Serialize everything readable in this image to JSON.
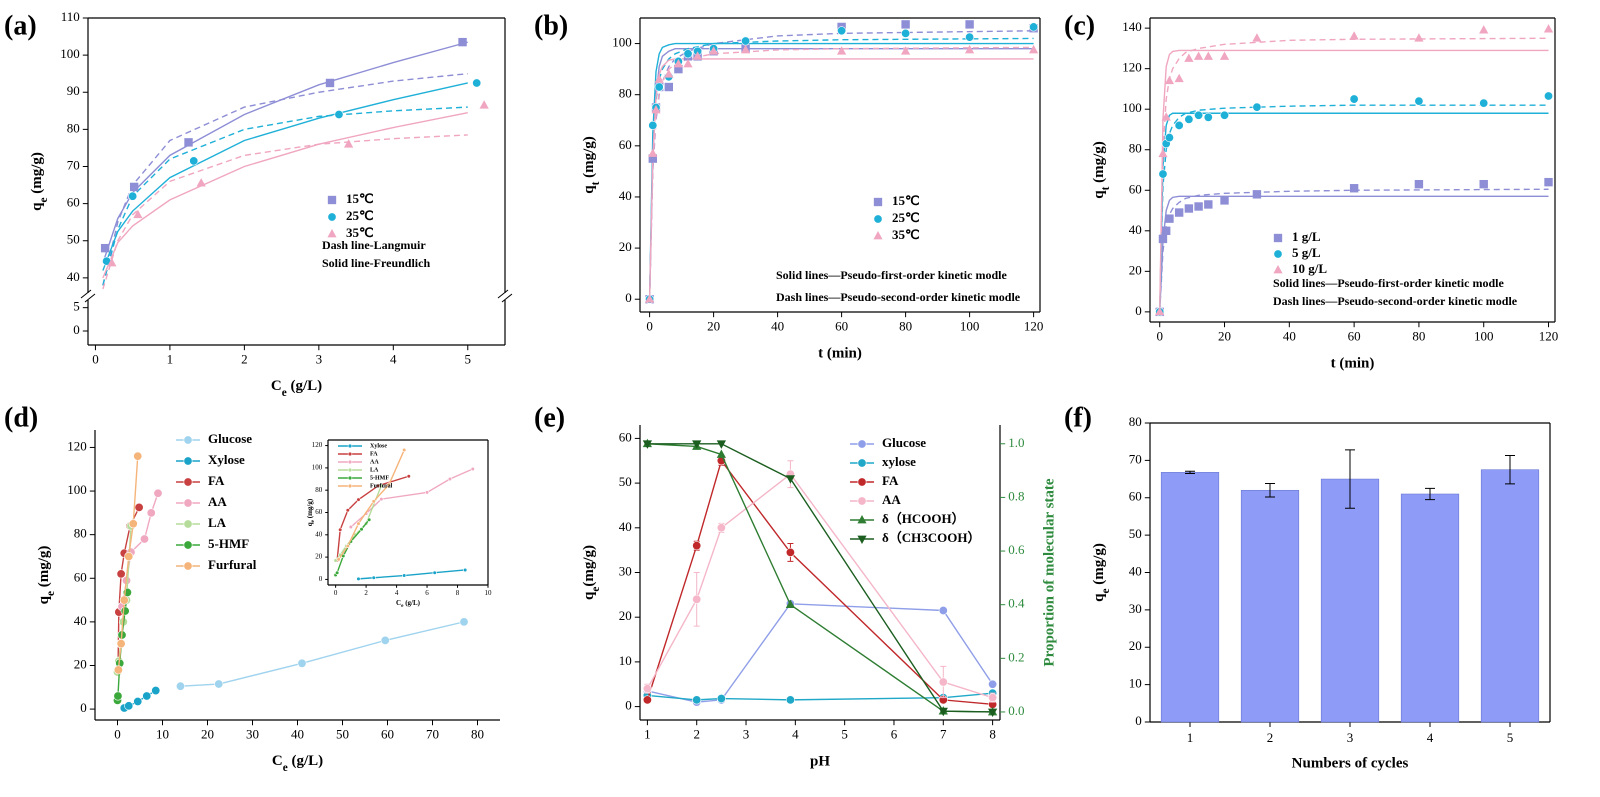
{
  "chart_data": [
    {
      "type": "scatter",
      "panel_label": "(a)",
      "x_label": {
        "text": "C",
        "sub": "e",
        "rest": " (g/L)"
      },
      "y_label": {
        "text": "q",
        "sub": "e",
        "rest": " (mg/g)"
      },
      "xlim": [
        -0.1,
        5.5
      ],
      "xticks": [
        0,
        1,
        2,
        3,
        4,
        5
      ],
      "ylim": [
        37,
        110
      ],
      "yticks": [
        40,
        50,
        60,
        70,
        80,
        90,
        100,
        110
      ],
      "ylim_lower": [
        -3,
        6
      ],
      "yticks_lower": [
        0,
        5
      ],
      "series": [
        {
          "name": "15℃",
          "color": "#8e8ed6",
          "marker": "square",
          "x": [
            0.13,
            0.52,
            1.25,
            3.15,
            4.93
          ],
          "values": [
            48,
            64.5,
            76.5,
            92.5,
            103.5
          ]
        },
        {
          "name": "25℃",
          "color": "#1fb0d8",
          "marker": "circle",
          "x": [
            0.15,
            0.5,
            1.32,
            3.27,
            5.12
          ],
          "values": [
            44.5,
            62,
            71.5,
            84,
            92.5
          ]
        },
        {
          "name": "35℃",
          "color": "#f0a6c0",
          "marker": "triangle",
          "x": [
            0.22,
            0.57,
            1.42,
            3.4,
            5.22
          ],
          "values": [
            44,
            57,
            65.5,
            76,
            86.5
          ]
        }
      ],
      "fit_x": [
        0.1,
        0.3,
        0.5,
        1,
        2,
        3,
        4,
        5
      ],
      "fits": [
        {
          "style": "solid",
          "color": "#8e8ed6",
          "values": [
            44,
            56,
            63,
            73,
            84,
            92,
            98,
            103.5
          ]
        },
        {
          "style": "dashed",
          "color": "#8e8ed6",
          "values": [
            38,
            55,
            65,
            77,
            86,
            90,
            93,
            95
          ]
        },
        {
          "style": "solid",
          "color": "#1fb0d8",
          "values": [
            42,
            52.5,
            58,
            67,
            77,
            83,
            88,
            92.5
          ]
        },
        {
          "style": "dashed",
          "color": "#1fb0d8",
          "values": [
            38,
            53,
            62,
            72,
            80,
            83.5,
            85,
            86
          ]
        },
        {
          "style": "solid",
          "color": "#f0a6c0",
          "values": [
            40,
            49.5,
            54,
            61,
            70,
            76,
            80.5,
            84.5
          ]
        },
        {
          "style": "dashed",
          "color": "#f0a6c0",
          "values": [
            37,
            50,
            57,
            66,
            73,
            76,
            77.5,
            78.5
          ]
        }
      ],
      "annotations": [
        "Dash line-Langmuir",
        "Solid line-Freundlich"
      ]
    },
    {
      "type": "scatter",
      "panel_label": "(b)",
      "x_label": "t (min)",
      "y_label": {
        "text": "q",
        "sub": "t",
        "rest": " (mg/g)"
      },
      "xlim": [
        -3,
        122
      ],
      "xticks": [
        0,
        20,
        40,
        60,
        80,
        100,
        120
      ],
      "ylim": [
        -5,
        110
      ],
      "yticks": [
        0,
        20,
        40,
        60,
        80,
        100
      ],
      "x": [
        0,
        1,
        2,
        3,
        6,
        9,
        12,
        15,
        20,
        30,
        60,
        80,
        100,
        120
      ],
      "series": [
        {
          "name": "15℃",
          "color": "#8e8ed6",
          "marker": "square",
          "values": [
            0,
            55,
            75,
            83,
            83,
            90,
            95,
            95,
            97,
            98,
            106.5,
            107.5,
            107.5,
            106
          ]
        },
        {
          "name": "25℃",
          "color": "#1fb0d8",
          "marker": "circle",
          "values": [
            0,
            68,
            75,
            83,
            87,
            93,
            96,
            97,
            98,
            101,
            105,
            104,
            102.5,
            106.5
          ]
        },
        {
          "name": "35℃",
          "color": "#f0a6c0",
          "marker": "triangle",
          "values": [
            0,
            57,
            74,
            86,
            88,
            92,
            92,
            95,
            97,
            97.5,
            97,
            97,
            97.5,
            97.5
          ]
        }
      ],
      "fit_x": [
        0,
        1,
        2,
        3,
        4,
        6,
        8,
        12,
        20,
        40,
        60,
        120
      ],
      "fits": [
        {
          "style": "solid",
          "color": "#8e8ed6",
          "values": [
            0,
            55,
            80,
            91,
            95,
            97,
            98,
            98,
            98,
            98,
            98,
            98
          ]
        },
        {
          "style": "dashed",
          "color": "#8e8ed6",
          "values": [
            0,
            50,
            70,
            80,
            85,
            91,
            94,
            97,
            100,
            103,
            104,
            105
          ]
        },
        {
          "style": "solid",
          "color": "#1fb0d8",
          "values": [
            0,
            65,
            89,
            96,
            98.5,
            99.5,
            100,
            100,
            100,
            100,
            100,
            100
          ]
        },
        {
          "style": "dashed",
          "color": "#1fb0d8",
          "values": [
            0,
            58,
            78,
            86,
            90,
            94,
            96,
            98,
            100,
            101,
            101.5,
            102
          ]
        },
        {
          "style": "solid",
          "color": "#f0a6c0",
          "values": [
            0,
            56,
            79,
            88,
            91,
            93.5,
            94,
            94,
            94,
            94,
            94,
            94
          ]
        },
        {
          "style": "dashed",
          "color": "#f0a6c0",
          "values": [
            0,
            52,
            72,
            81,
            85,
            90,
            92,
            94,
            96,
            97.5,
            98,
            98.5
          ]
        }
      ],
      "annotations": [
        "Solid lines—Pseudo-first-order kinetic modle",
        "Dash lines—Pseudo-second-order kinetic modle"
      ]
    },
    {
      "type": "scatter",
      "panel_label": "(c)",
      "x_label": "t (min)",
      "y_label": {
        "text": "q",
        "sub": "t",
        "rest": " (mg/g)"
      },
      "xlim": [
        -3,
        122
      ],
      "xticks": [
        0,
        20,
        40,
        60,
        80,
        100,
        120
      ],
      "ylim": [
        -5,
        145
      ],
      "yticks": [
        0,
        20,
        40,
        60,
        80,
        100,
        120,
        140
      ],
      "x": [
        0,
        1,
        2,
        3,
        6,
        9,
        12,
        15,
        20,
        30,
        60,
        80,
        100,
        120
      ],
      "series": [
        {
          "name": "1 g/L",
          "color": "#8e8ed6",
          "marker": "square",
          "values": [
            0,
            36,
            40,
            46,
            49,
            51,
            52,
            53,
            55,
            58,
            61,
            63,
            63,
            64
          ]
        },
        {
          "name": "5 g/L",
          "color": "#1fb0d8",
          "marker": "circle",
          "values": [
            0,
            68,
            83,
            86,
            92,
            95,
            97,
            96,
            97,
            101,
            105,
            104,
            103,
            106.5
          ]
        },
        {
          "name": "10 g/L",
          "color": "#f0a6c0",
          "marker": "triangle",
          "values": [
            0,
            78,
            96,
            114,
            115,
            125,
            126,
            126,
            126,
            135,
            136,
            135,
            139,
            139.5
          ]
        }
      ],
      "fit_x": [
        0,
        1,
        2,
        3,
        4,
        6,
        8,
        12,
        20,
        40,
        60,
        120
      ],
      "fits": [
        {
          "style": "solid",
          "color": "#8e8ed6",
          "values": [
            0,
            35,
            50,
            55,
            56.5,
            57,
            57,
            57,
            57,
            57,
            57,
            57
          ]
        },
        {
          "style": "dashed",
          "color": "#8e8ed6",
          "values": [
            0,
            30,
            42,
            48,
            51,
            54,
            56,
            57.5,
            58.5,
            59.5,
            60,
            60.5
          ]
        },
        {
          "style": "solid",
          "color": "#1fb0d8",
          "values": [
            0,
            72,
            92,
            97,
            98,
            98,
            98,
            98,
            98,
            98,
            98,
            98
          ]
        },
        {
          "style": "dashed",
          "color": "#1fb0d8",
          "values": [
            0,
            62,
            80,
            88,
            92,
            96,
            98,
            99.5,
            100.5,
            101.5,
            102,
            102
          ]
        },
        {
          "style": "solid",
          "color": "#f0a6c0",
          "values": [
            0,
            95,
            121,
            127,
            128.5,
            129,
            129,
            129,
            129,
            129,
            129,
            129
          ]
        },
        {
          "style": "dashed",
          "color": "#f0a6c0",
          "values": [
            0,
            80,
            105,
            115,
            120,
            125,
            128,
            130,
            132,
            134,
            134.5,
            135
          ]
        }
      ],
      "annotations": [
        "Solid lines—Pseudo-first-order kinetic modle",
        "Dash lines—Pseudo-second-order kinetic modle"
      ]
    },
    {
      "type": "line",
      "panel_label": "(d)",
      "x_label": {
        "text": "C",
        "sub": "e",
        "rest": " (g/L)"
      },
      "y_label": {
        "text": "q",
        "sub": "e",
        "rest": " (mg/g)"
      },
      "xlim": [
        -5,
        85
      ],
      "xticks": [
        0,
        10,
        20,
        30,
        40,
        50,
        60,
        70,
        80
      ],
      "ylim": [
        -5,
        128
      ],
      "yticks": [
        0,
        20,
        40,
        60,
        80,
        100,
        120
      ],
      "series": [
        {
          "name": "Glucose",
          "color": "#9fd3ee",
          "marker": "circle",
          "x": [
            14,
            22.5,
            41,
            59.5,
            77
          ],
          "values": [
            10.5,
            11.5,
            21,
            31.5,
            40
          ]
        },
        {
          "name": "Xylose",
          "color": "#1aa3c8",
          "marker": "circle",
          "x": [
            1.5,
            2.5,
            4.5,
            6.5,
            8.5
          ],
          "values": [
            0.5,
            1.5,
            3.5,
            6,
            8.5
          ]
        },
        {
          "name": "FA",
          "color": "#c84040",
          "marker": "circle",
          "x": [
            0.1,
            0.3,
            0.8,
            1.5,
            2.8,
            4.8
          ],
          "values": [
            17,
            44.5,
            62,
            71.5,
            84,
            92.5
          ]
        },
        {
          "name": "AA",
          "color": "#f0a8c0",
          "marker": "circle",
          "x": [
            1,
            2,
            3,
            6,
            7.5,
            9
          ],
          "values": [
            47,
            59,
            72,
            78,
            90,
            99
          ]
        },
        {
          "name": "LA",
          "color": "#b5dc9a",
          "marker": "circle",
          "x": [
            0,
            0.3,
            0.7,
            1.3,
            2,
            3
          ],
          "values": [
            17,
            22,
            30,
            40,
            50,
            84
          ]
        },
        {
          "name": "5-HMF",
          "color": "#3aa83a",
          "marker": "circle",
          "x": [
            0,
            0.1,
            0.5,
            1,
            1.7,
            2.2
          ],
          "values": [
            4,
            6,
            21,
            34,
            45,
            53.5
          ]
        },
        {
          "name": "Furfural",
          "color": "#f5b47a",
          "marker": "circle",
          "x": [
            0.2,
            0.8,
            1.5,
            2.5,
            3.5,
            4.5
          ],
          "values": [
            18,
            30,
            50,
            70,
            85,
            116
          ]
        }
      ],
      "inset": {
        "xlim": [
          -0.5,
          10
        ],
        "ylim": [
          -5,
          125
        ],
        "xticks": [
          0,
          2,
          4,
          6,
          8,
          10
        ],
        "yticks": [
          0,
          20,
          40,
          60,
          80,
          100,
          120
        ]
      }
    },
    {
      "type": "line",
      "panel_label": "(e)",
      "x_label": "pH",
      "y_label": {
        "text": "q",
        "sub": "e",
        "rest": "(mg/g)"
      },
      "y2_label": "Proportion of molecular state",
      "xlim": [
        0.85,
        8.15
      ],
      "xticks": [
        1,
        2,
        3,
        4,
        5,
        6,
        7,
        8
      ],
      "ylim": [
        -3,
        63
      ],
      "yticks": [
        0,
        10,
        20,
        30,
        40,
        50,
        60
      ],
      "y2lim": [
        -0.03,
        1.07
      ],
      "y2ticks": [
        {
          "value": 0,
          "label": "0.0"
        },
        0.2,
        0.4,
        0.6,
        0.8,
        {
          "value": 1,
          "label": "1.0"
        }
      ],
      "x": [
        1,
        2,
        2.5,
        3.9,
        7,
        8
      ],
      "series": [
        {
          "name": "Glucose",
          "color": "#8f9ee8",
          "marker": "circle",
          "values": [
            3.5,
            1,
            1.5,
            23,
            21.5,
            5
          ]
        },
        {
          "name": "xylose",
          "color": "#1fa8c8",
          "marker": "circle",
          "values": [
            2.5,
            1.5,
            1.8,
            1.5,
            2,
            3
          ]
        },
        {
          "name": "FA",
          "color": "#c0282a",
          "marker": "circle",
          "values": [
            1.5,
            36,
            55,
            34.5,
            1.5,
            0.5
          ],
          "errors": [
            0.5,
            1,
            1,
            2,
            0.5,
            0.5
          ]
        },
        {
          "name": "AA",
          "color": "#f4b6c8",
          "marker": "circle",
          "values": [
            4,
            24,
            40,
            52,
            5.5,
            2
          ],
          "errors": [
            1,
            6,
            1,
            3,
            3.5,
            1
          ]
        },
        {
          "name": "δ（HCOOH）",
          "color": "#2e7d32",
          "marker": "triangle",
          "axis": "y2",
          "values": [
            1,
            0.99,
            0.96,
            0.4,
            0.003,
            0
          ]
        },
        {
          "name": "δ（CH3COOH）",
          "color": "#1b5e20",
          "marker": "invtriangle",
          "axis": "y2",
          "values": [
            1,
            1,
            1,
            0.87,
            0.003,
            0
          ]
        }
      ]
    },
    {
      "type": "bar",
      "panel_label": "(f)",
      "x_label": "Numbers of cycles",
      "y_label": {
        "text": "q",
        "sub": "e",
        "rest": " (mg/g)"
      },
      "categories": [
        "1",
        "2",
        "3",
        "4",
        "5"
      ],
      "values": [
        66.8,
        62,
        65,
        61,
        67.5
      ],
      "errors": [
        0.3,
        1.8,
        7.8,
        1.5,
        3.8
      ],
      "color": "#8e9cf8",
      "ylim": [
        0,
        80
      ],
      "yticks": [
        0,
        10,
        20,
        30,
        40,
        50,
        60,
        70,
        80
      ]
    }
  ]
}
